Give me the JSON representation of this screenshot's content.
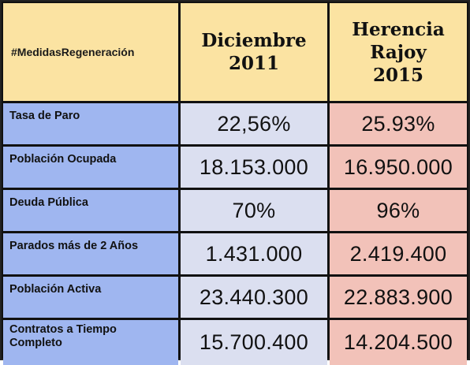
{
  "header": {
    "hashtag": "#MedidasRegeneración",
    "col_2011": [
      "Diciembre",
      "2011"
    ],
    "col_2015": [
      "Herencia",
      "Rajoy",
      "2015"
    ]
  },
  "rows": [
    {
      "label": "Tasa de Paro",
      "v2011": "22,56%",
      "v2015": "25.93%"
    },
    {
      "label": "Población Ocupada",
      "v2011": "18.153.000",
      "v2015": "16.950.000"
    },
    {
      "label": "Deuda Pública",
      "v2011": "70%",
      "v2015": "96%"
    },
    {
      "label": "Parados más de 2 Años",
      "v2011": "1.431.000",
      "v2015": "2.419.400"
    },
    {
      "label": "Población Activa",
      "v2011": "23.440.300",
      "v2015": "22.883.900"
    },
    {
      "label": "Contratos a Tiempo Completo",
      "label_lines": [
        "Contratos a Tiempo",
        "Completo"
      ],
      "v2011": "15.700.400",
      "v2015": "14.204.500"
    }
  ],
  "colors": {
    "header_bg": "#fbe3a2",
    "label_bg": "#9fb6f0",
    "col_2011_bg": "#dbdff0",
    "col_2015_bg": "#f2c2b9",
    "grid_lines": "#111111"
  }
}
